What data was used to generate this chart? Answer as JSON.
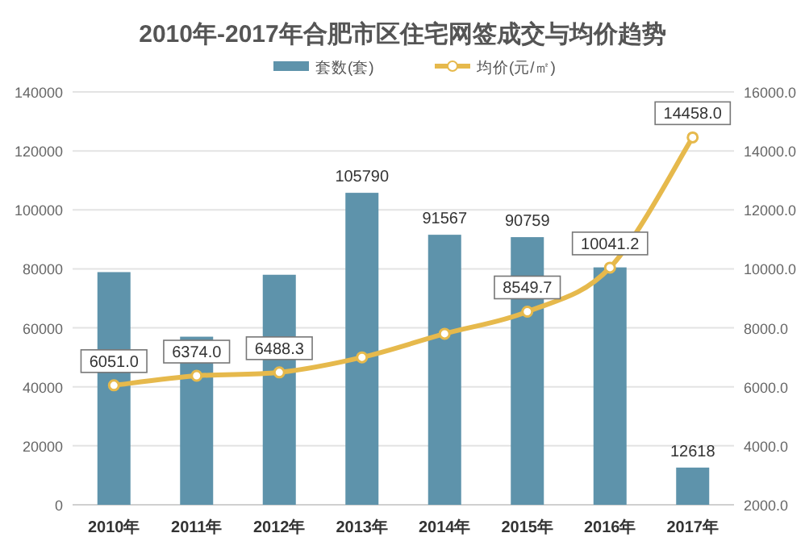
{
  "chart_data": {
    "type": "bar",
    "title": "2010年-2017年合肥市区住宅网签成交与均价趋势",
    "categories": [
      "2010年",
      "2011年",
      "2012年",
      "2013年",
      "2014年",
      "2015年",
      "2016年",
      "2017年"
    ],
    "series": [
      {
        "name": "套数(套)",
        "color": "#5e93ab",
        "values": [
          78900,
          57000,
          78000,
          105790,
          91567,
          90759,
          80500,
          12618
        ],
        "value_labels": [
          null,
          null,
          null,
          "105790",
          "91567",
          "90759",
          null,
          "12618"
        ]
      },
      {
        "name": "均价(元/㎡)",
        "type": "line",
        "axis": "y2",
        "color": "#e6b94c",
        "marker": "circle",
        "values": [
          6051.0,
          6374.0,
          6488.3,
          7000,
          7800,
          8549.7,
          10041.2,
          14458.0
        ],
        "value_labels": [
          "6051.0",
          "6374.0",
          "6488.3",
          null,
          null,
          "8549.7",
          "10041.2",
          "14458.0"
        ]
      }
    ],
    "ylim": [
      0,
      140000
    ],
    "yticks": [
      0,
      20000,
      40000,
      60000,
      80000,
      100000,
      120000,
      140000
    ],
    "y2lim": [
      2000,
      16000
    ],
    "y2ticks": [
      {
        "value": 2000,
        "label": "2000.0"
      },
      {
        "value": 4000,
        "label": "4000.0"
      },
      {
        "value": 6000,
        "label": "6000.0"
      },
      {
        "value": 8000,
        "label": "8000.0"
      },
      {
        "value": 10000,
        "label": "10000.0"
      },
      {
        "value": 12000,
        "label": "12000.0"
      },
      {
        "value": 14000,
        "label": "14000.0"
      },
      {
        "value": 16000,
        "label": "16000.0"
      }
    ],
    "grid": "y",
    "legend": "top"
  }
}
